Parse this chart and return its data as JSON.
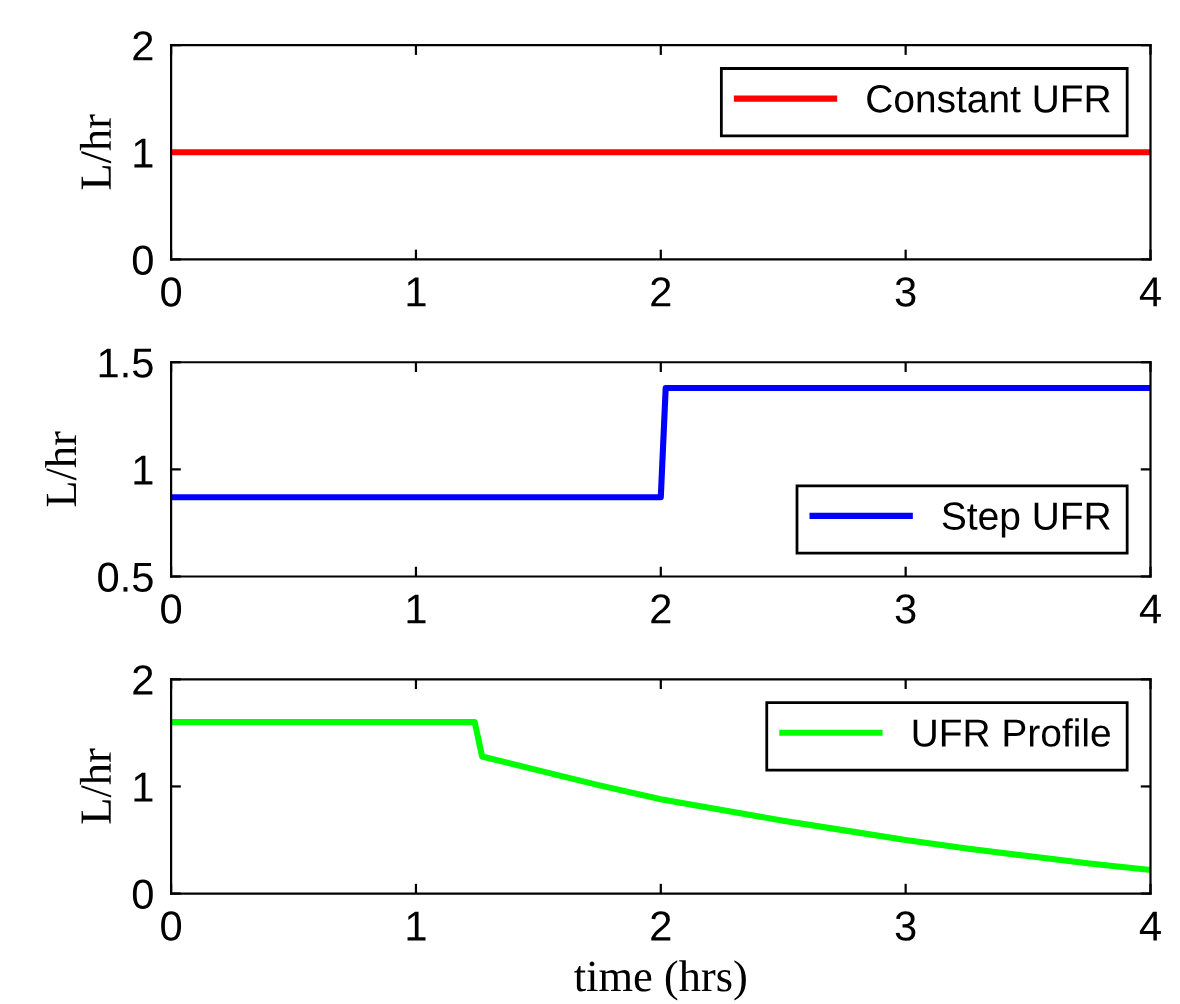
{
  "chart_data": [
    {
      "type": "line",
      "ylabel": "L/hr",
      "legend": "top right",
      "xlim": [
        0,
        4
      ],
      "xticks": [
        0,
        1,
        2,
        3,
        4
      ],
      "ylim": [
        0,
        2
      ],
      "yticks": [
        0,
        1,
        2
      ],
      "series": [
        {
          "name": "Constant UFR",
          "color": "#ff0000",
          "x": [
            0,
            4
          ],
          "values": [
            1,
            1
          ]
        }
      ]
    },
    {
      "type": "line",
      "ylabel": "L/hr",
      "legend": "bottom right",
      "xlim": [
        0,
        4
      ],
      "xticks": [
        0,
        1,
        2,
        3,
        4
      ],
      "ylim": [
        0.5,
        1.5
      ],
      "yticks": [
        0.5,
        1,
        1.5
      ],
      "series": [
        {
          "name": "Step UFR",
          "color": "#0000ff",
          "x": [
            0,
            2.0,
            2.02,
            4
          ],
          "values": [
            0.87,
            0.87,
            1.38,
            1.38
          ]
        }
      ]
    },
    {
      "type": "line",
      "ylabel": "L/hr",
      "xlabel": "time (hrs)",
      "legend": "top right",
      "xlim": [
        0,
        4
      ],
      "xticks": [
        0,
        1,
        2,
        3,
        4
      ],
      "ylim": [
        0,
        2
      ],
      "yticks": [
        0,
        1,
        2
      ],
      "series": [
        {
          "name": "UFR Profile",
          "color": "#00ff00",
          "x": [
            0,
            1.24,
            1.27,
            1.5,
            1.75,
            2,
            2.25,
            2.5,
            2.75,
            3,
            3.25,
            3.5,
            3.75,
            4
          ],
          "values": [
            1.6,
            1.6,
            1.28,
            1.15,
            1.01,
            0.88,
            0.78,
            0.68,
            0.59,
            0.5,
            0.42,
            0.35,
            0.28,
            0.22
          ]
        }
      ]
    }
  ]
}
